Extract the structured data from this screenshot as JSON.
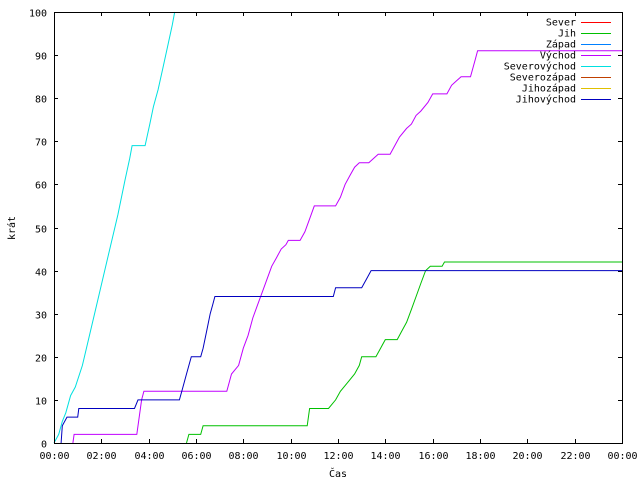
{
  "chart_data": {
    "type": "line",
    "title": "",
    "xlabel": "Čas",
    "ylabel": "krát",
    "xlim": [
      0,
      24
    ],
    "ylim": [
      0,
      100
    ],
    "x_unit": "hours",
    "x_tick_labels": [
      "00:00",
      "02:00",
      "04:00",
      "06:00",
      "08:00",
      "10:00",
      "12:00",
      "14:00",
      "16:00",
      "18:00",
      "20:00",
      "22:00",
      "00:00"
    ],
    "y_tick_labels": [
      "0",
      "10",
      "20",
      "30",
      "40",
      "50",
      "60",
      "70",
      "80",
      "90",
      "100"
    ],
    "grid": false,
    "legend_position": "top-right",
    "series": [
      {
        "name": "Sever",
        "color": "#ff0000",
        "points": []
      },
      {
        "name": "Jih",
        "color": "#00c000",
        "points": [
          [
            5.6,
            0
          ],
          [
            5.7,
            2
          ],
          [
            6.2,
            2
          ],
          [
            6.3,
            4
          ],
          [
            10.7,
            4
          ],
          [
            10.8,
            8
          ],
          [
            11.6,
            8
          ],
          [
            11.9,
            10
          ],
          [
            12.1,
            12
          ],
          [
            12.4,
            14
          ],
          [
            12.7,
            16
          ],
          [
            12.9,
            18
          ],
          [
            13.0,
            20
          ],
          [
            13.6,
            20
          ],
          [
            13.8,
            22
          ],
          [
            14.0,
            24
          ],
          [
            14.5,
            24
          ],
          [
            14.7,
            26
          ],
          [
            14.9,
            28
          ],
          [
            15.1,
            31
          ],
          [
            15.3,
            34
          ],
          [
            15.5,
            37
          ],
          [
            15.7,
            40
          ],
          [
            15.9,
            41
          ],
          [
            16.4,
            41
          ],
          [
            16.5,
            42
          ],
          [
            24.0,
            42
          ]
        ]
      },
      {
        "name": "Západ",
        "color": "#0080ff",
        "points": []
      },
      {
        "name": "Východ",
        "color": "#c000ff",
        "points": [
          [
            0.8,
            0
          ],
          [
            0.85,
            2
          ],
          [
            3.5,
            2
          ],
          [
            3.7,
            10
          ],
          [
            3.8,
            12
          ],
          [
            7.3,
            12
          ],
          [
            7.5,
            16
          ],
          [
            7.8,
            18
          ],
          [
            8.0,
            22
          ],
          [
            8.2,
            25
          ],
          [
            8.4,
            29
          ],
          [
            8.6,
            32
          ],
          [
            8.8,
            35
          ],
          [
            9.0,
            38
          ],
          [
            9.2,
            41
          ],
          [
            9.4,
            43
          ],
          [
            9.6,
            45
          ],
          [
            9.8,
            46
          ],
          [
            9.9,
            47
          ],
          [
            10.4,
            47
          ],
          [
            10.6,
            49
          ],
          [
            10.8,
            52
          ],
          [
            11.0,
            55
          ],
          [
            11.9,
            55
          ],
          [
            12.1,
            57
          ],
          [
            12.3,
            60
          ],
          [
            12.5,
            62
          ],
          [
            12.7,
            64
          ],
          [
            12.9,
            65
          ],
          [
            13.3,
            65
          ],
          [
            13.5,
            66
          ],
          [
            13.7,
            67
          ],
          [
            14.2,
            67
          ],
          [
            14.4,
            69
          ],
          [
            14.6,
            71
          ],
          [
            14.9,
            73
          ],
          [
            15.1,
            74
          ],
          [
            15.3,
            76
          ],
          [
            15.5,
            77
          ],
          [
            15.8,
            79
          ],
          [
            16.0,
            81
          ],
          [
            16.6,
            81
          ],
          [
            16.8,
            83
          ],
          [
            17.0,
            84
          ],
          [
            17.2,
            85
          ],
          [
            17.6,
            85
          ],
          [
            17.8,
            89
          ],
          [
            17.9,
            91
          ],
          [
            24.0,
            91
          ]
        ]
      },
      {
        "name": "Severovýchod",
        "color": "#00e0e0",
        "points": [
          [
            0.0,
            0
          ],
          [
            0.2,
            2
          ],
          [
            0.35,
            5
          ],
          [
            0.5,
            7
          ],
          [
            0.7,
            11
          ],
          [
            0.9,
            13
          ],
          [
            1.2,
            18
          ],
          [
            1.5,
            25
          ],
          [
            1.8,
            32
          ],
          [
            2.1,
            39
          ],
          [
            2.4,
            46
          ],
          [
            2.7,
            53
          ],
          [
            3.0,
            61
          ],
          [
            3.2,
            66
          ],
          [
            3.3,
            69
          ],
          [
            3.85,
            69
          ],
          [
            4.05,
            74
          ],
          [
            4.2,
            78
          ],
          [
            4.4,
            82
          ],
          [
            4.6,
            87
          ],
          [
            4.8,
            92
          ],
          [
            5.0,
            97
          ],
          [
            5.1,
            100
          ]
        ]
      },
      {
        "name": "Severozápad",
        "color": "#c04000",
        "points": []
      },
      {
        "name": "Jihozápad",
        "color": "#e0c000",
        "points": []
      },
      {
        "name": "Jihovýchod",
        "color": "#0000c0",
        "points": [
          [
            0.3,
            0
          ],
          [
            0.35,
            4
          ],
          [
            0.55,
            6
          ],
          [
            1.0,
            6
          ],
          [
            1.05,
            8
          ],
          [
            3.4,
            8
          ],
          [
            3.55,
            10
          ],
          [
            5.3,
            10
          ],
          [
            5.4,
            12
          ],
          [
            5.6,
            16
          ],
          [
            5.7,
            18
          ],
          [
            5.8,
            20
          ],
          [
            6.2,
            20
          ],
          [
            6.3,
            22
          ],
          [
            6.45,
            26
          ],
          [
            6.6,
            30
          ],
          [
            6.7,
            32
          ],
          [
            6.8,
            34
          ],
          [
            11.8,
            34
          ],
          [
            11.9,
            36
          ],
          [
            13.0,
            36
          ],
          [
            13.2,
            38
          ],
          [
            13.4,
            40
          ],
          [
            24.0,
            40
          ]
        ]
      }
    ]
  }
}
